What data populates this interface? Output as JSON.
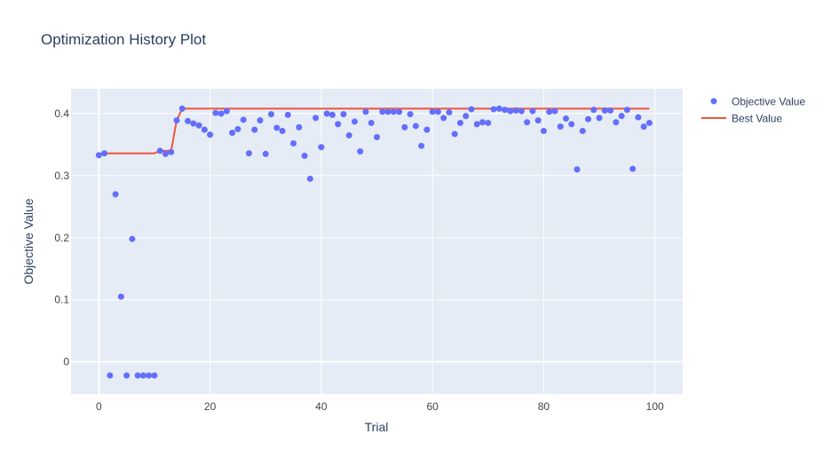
{
  "chart_data": {
    "type": "scatter",
    "title": "Optimization History Plot",
    "xlabel": "Trial",
    "ylabel": "Objective Value",
    "xlim": [
      -5,
      105
    ],
    "ylim": [
      -0.052,
      0.44
    ],
    "x_ticks": [
      0,
      20,
      40,
      60,
      80,
      100
    ],
    "y_ticks": [
      0,
      0.1,
      0.2,
      0.3,
      0.4
    ],
    "x_tick_labels": [
      "0",
      "20",
      "40",
      "60",
      "80",
      "100"
    ],
    "y_tick_labels": [
      "0",
      "0.1",
      "0.2",
      "0.3",
      "0.4"
    ],
    "grid": true,
    "legend_position": "top-right",
    "colors": {
      "plot_bg": "#e5ecf6",
      "grid": "#ffffff",
      "objective": "#636efa",
      "best": "#ef553b"
    },
    "series": [
      {
        "name": "Objective Value",
        "mode": "markers",
        "x": [
          0,
          1,
          2,
          3,
          4,
          5,
          6,
          7,
          8,
          9,
          10,
          11,
          12,
          13,
          14,
          15,
          16,
          17,
          18,
          19,
          20,
          21,
          22,
          23,
          24,
          25,
          26,
          27,
          28,
          29,
          30,
          31,
          32,
          33,
          34,
          35,
          36,
          37,
          38,
          39,
          40,
          41,
          42,
          43,
          44,
          45,
          46,
          47,
          48,
          49,
          50,
          51,
          52,
          53,
          54,
          55,
          56,
          57,
          58,
          59,
          60,
          61,
          62,
          63,
          64,
          65,
          66,
          67,
          68,
          69,
          70,
          71,
          72,
          73,
          74,
          75,
          76,
          77,
          78,
          79,
          80,
          81,
          82,
          83,
          84,
          85,
          86,
          87,
          88,
          89,
          90,
          91,
          92,
          93,
          94,
          95,
          96,
          97,
          98,
          99
        ],
        "values": [
          0.333,
          0.336,
          -0.022,
          0.27,
          0.105,
          -0.022,
          0.198,
          -0.022,
          -0.022,
          -0.022,
          -0.022,
          0.34,
          0.335,
          0.338,
          0.389,
          0.408,
          0.388,
          0.384,
          0.381,
          0.374,
          0.366,
          0.401,
          0.4,
          0.404,
          0.369,
          0.375,
          0.39,
          0.336,
          0.374,
          0.389,
          0.335,
          0.399,
          0.377,
          0.372,
          0.398,
          0.352,
          0.378,
          0.332,
          0.295,
          0.393,
          0.346,
          0.4,
          0.398,
          0.383,
          0.399,
          0.365,
          0.387,
          0.339,
          0.403,
          0.385,
          0.362,
          0.403,
          0.403,
          0.403,
          0.403,
          0.378,
          0.399,
          0.38,
          0.348,
          0.374,
          0.403,
          0.403,
          0.393,
          0.402,
          0.367,
          0.385,
          0.396,
          0.407,
          0.383,
          0.386,
          0.385,
          0.407,
          0.408,
          0.406,
          0.404,
          0.405,
          0.404,
          0.386,
          0.404,
          0.389,
          0.372,
          0.403,
          0.404,
          0.379,
          0.392,
          0.383,
          0.31,
          0.372,
          0.391,
          0.406,
          0.393,
          0.405,
          0.405,
          0.386,
          0.396,
          0.406,
          0.311,
          0.394,
          0.379,
          0.385
        ]
      },
      {
        "name": "Best Value",
        "mode": "lines",
        "x": [
          0,
          1,
          2,
          3,
          4,
          5,
          6,
          7,
          8,
          9,
          10,
          11,
          12,
          13,
          14,
          15,
          16,
          17,
          18,
          19,
          20,
          21,
          22,
          23,
          24,
          25,
          26,
          27,
          28,
          29,
          30,
          31,
          32,
          33,
          34,
          35,
          36,
          37,
          38,
          39,
          40,
          41,
          42,
          43,
          44,
          45,
          46,
          47,
          48,
          49,
          50,
          51,
          52,
          53,
          54,
          55,
          56,
          57,
          58,
          59,
          60,
          61,
          62,
          63,
          64,
          65,
          66,
          67,
          68,
          69,
          70,
          71,
          72,
          73,
          74,
          75,
          76,
          77,
          78,
          79,
          80,
          81,
          82,
          83,
          84,
          85,
          86,
          87,
          88,
          89,
          90,
          91,
          92,
          93,
          94,
          95,
          96,
          97,
          98,
          99
        ],
        "values": [
          0.333,
          0.336,
          0.336,
          0.336,
          0.336,
          0.336,
          0.336,
          0.336,
          0.336,
          0.336,
          0.336,
          0.34,
          0.34,
          0.34,
          0.389,
          0.408,
          0.408,
          0.408,
          0.408,
          0.408,
          0.408,
          0.408,
          0.408,
          0.408,
          0.408,
          0.408,
          0.408,
          0.408,
          0.408,
          0.408,
          0.408,
          0.408,
          0.408,
          0.408,
          0.408,
          0.408,
          0.408,
          0.408,
          0.408,
          0.408,
          0.408,
          0.408,
          0.408,
          0.408,
          0.408,
          0.408,
          0.408,
          0.408,
          0.408,
          0.408,
          0.408,
          0.408,
          0.408,
          0.408,
          0.408,
          0.408,
          0.408,
          0.408,
          0.408,
          0.408,
          0.408,
          0.408,
          0.408,
          0.408,
          0.408,
          0.408,
          0.408,
          0.408,
          0.408,
          0.408,
          0.408,
          0.408,
          0.408,
          0.408,
          0.408,
          0.408,
          0.408,
          0.408,
          0.408,
          0.408,
          0.408,
          0.408,
          0.408,
          0.408,
          0.408,
          0.408,
          0.408,
          0.408,
          0.408,
          0.408,
          0.408,
          0.408,
          0.408,
          0.408,
          0.408,
          0.408,
          0.408,
          0.408,
          0.408,
          0.408
        ]
      }
    ]
  }
}
